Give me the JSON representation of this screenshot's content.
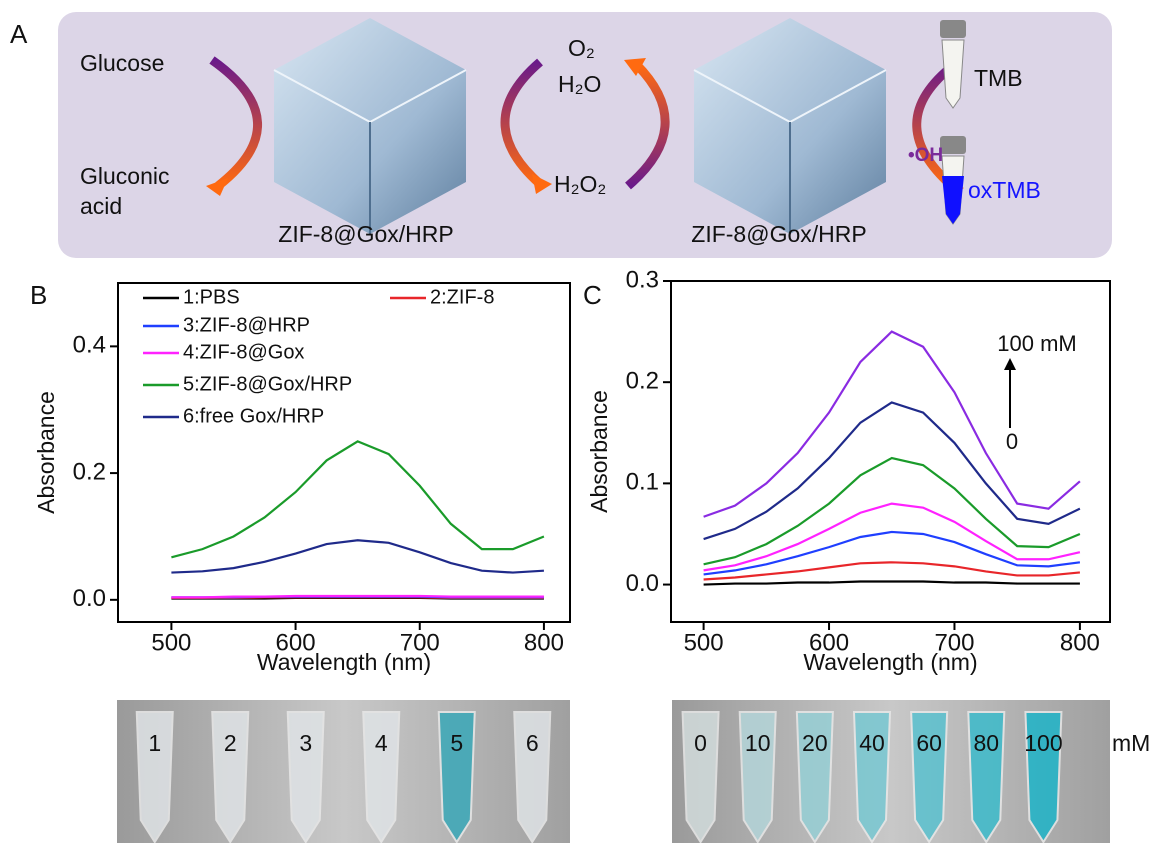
{
  "panel_a": {
    "label": "A",
    "glucose": "Glucose",
    "gluconic_acid": [
      "Gluconic",
      "acid"
    ],
    "o2": "O₂",
    "h2o": "H₂O",
    "h2o2": "H₂O₂",
    "catalyst_left": "ZIF-8@Gox/HRP",
    "catalyst_right": "ZIF-8@Gox/HRP",
    "tmb": "TMB",
    "oxtmb": "oxTMB",
    "radical": "•OH"
  },
  "chart_data": [
    {
      "type": "line",
      "panel_label": "B",
      "x_label": "Wavelength (nm)",
      "y_label": "Absorbance",
      "x": [
        500,
        525,
        550,
        575,
        600,
        625,
        650,
        675,
        700,
        725,
        750,
        775,
        800
      ],
      "xlim": [
        457,
        821
      ],
      "ylim": [
        -0.035,
        0.5
      ],
      "xticks": [
        500,
        600,
        700,
        800
      ],
      "yticks": [
        {
          "value": 0,
          "label": "0.0"
        },
        0.2,
        0.4
      ],
      "series": [
        {
          "name": "1:PBS",
          "color": "#000000",
          "values": [
            0.002,
            0.002,
            0.002,
            0.002,
            0.003,
            0.003,
            0.003,
            0.003,
            0.003,
            0.002,
            0.002,
            0.002,
            0.002
          ]
        },
        {
          "name": "2:ZIF-8",
          "color": "#e8262a",
          "values": [
            0.003,
            0.003,
            0.003,
            0.004,
            0.004,
            0.004,
            0.004,
            0.004,
            0.004,
            0.003,
            0.003,
            0.003,
            0.003
          ]
        },
        {
          "name": "3:ZIF-8@HRP",
          "color": "#1f3fff",
          "values": [
            0.004,
            0.004,
            0.004,
            0.005,
            0.005,
            0.005,
            0.005,
            0.005,
            0.005,
            0.004,
            0.004,
            0.004,
            0.004
          ]
        },
        {
          "name": "4:ZIF-8@Gox",
          "color": "#ff22ff",
          "values": [
            0.004,
            0.004,
            0.005,
            0.005,
            0.006,
            0.006,
            0.006,
            0.006,
            0.006,
            0.005,
            0.005,
            0.005,
            0.005
          ]
        },
        {
          "name": "5:ZIF-8@Gox/HRP",
          "color": "#1a9b2a",
          "values": [
            0.067,
            0.08,
            0.1,
            0.13,
            0.17,
            0.22,
            0.25,
            0.23,
            0.18,
            0.12,
            0.08,
            0.08,
            0.1
          ]
        },
        {
          "name": "6:free Gox/HRP",
          "color": "#1f2a8a",
          "values": [
            0.043,
            0.045,
            0.05,
            0.06,
            0.073,
            0.088,
            0.094,
            0.09,
            0.075,
            0.058,
            0.046,
            0.043,
            0.046
          ]
        }
      ]
    },
    {
      "type": "line",
      "panel_label": "C",
      "x_label": "Wavelength (nm)",
      "y_label": "Absorbance",
      "x": [
        500,
        525,
        550,
        575,
        600,
        625,
        650,
        675,
        700,
        725,
        750,
        775,
        800
      ],
      "xlim": [
        474,
        824
      ],
      "ylim": [
        -0.037,
        0.3
      ],
      "xticks": [
        500,
        600,
        700,
        800
      ],
      "yticks": [
        {
          "value": 0,
          "label": "0.0"
        },
        0.1,
        0.2,
        0.3
      ],
      "annotations": [
        "100 mM",
        "0"
      ],
      "series": [
        {
          "color": "#000000",
          "values": [
            0.0,
            0.001,
            0.001,
            0.002,
            0.002,
            0.003,
            0.003,
            0.003,
            0.002,
            0.002,
            0.001,
            0.001,
            0.001
          ]
        },
        {
          "color": "#e8262a",
          "values": [
            0.005,
            0.007,
            0.01,
            0.013,
            0.017,
            0.021,
            0.022,
            0.021,
            0.018,
            0.013,
            0.009,
            0.009,
            0.012
          ]
        },
        {
          "color": "#1f3fff",
          "values": [
            0.01,
            0.014,
            0.02,
            0.028,
            0.037,
            0.047,
            0.052,
            0.05,
            0.042,
            0.03,
            0.019,
            0.018,
            0.022
          ]
        },
        {
          "color": "#ff22ff",
          "values": [
            0.014,
            0.019,
            0.028,
            0.04,
            0.055,
            0.071,
            0.08,
            0.076,
            0.062,
            0.043,
            0.025,
            0.025,
            0.032
          ]
        },
        {
          "color": "#1a9b2a",
          "values": [
            0.02,
            0.027,
            0.04,
            0.058,
            0.08,
            0.108,
            0.125,
            0.118,
            0.095,
            0.065,
            0.038,
            0.037,
            0.05
          ]
        },
        {
          "color": "#1f2a8a",
          "values": [
            0.045,
            0.055,
            0.072,
            0.095,
            0.125,
            0.16,
            0.18,
            0.17,
            0.14,
            0.1,
            0.065,
            0.06,
            0.075
          ]
        },
        {
          "color": "#8a2be2",
          "values": [
            0.067,
            0.078,
            0.1,
            0.13,
            0.17,
            0.22,
            0.25,
            0.235,
            0.19,
            0.13,
            0.08,
            0.075,
            0.102
          ]
        }
      ]
    }
  ],
  "photos": {
    "left": [
      "1",
      "2",
      "3",
      "4",
      "5",
      "6"
    ],
    "right": [
      "0",
      "10",
      "20",
      "40",
      "60",
      "80",
      "100"
    ],
    "unit": "mM"
  }
}
